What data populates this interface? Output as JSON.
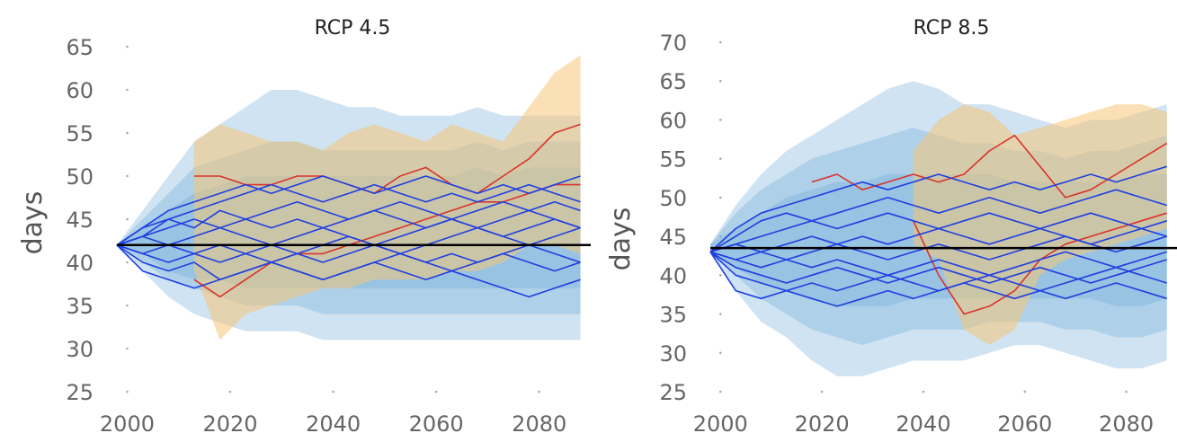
{
  "chart_data": [
    {
      "type": "line",
      "title": "RCP 4.5",
      "xlabel": "",
      "ylabel": "days",
      "xlim": [
        1998,
        2090
      ],
      "ylim": [
        25,
        65
      ],
      "x_ticks": [
        2000,
        2020,
        2040,
        2060,
        2080
      ],
      "x_tick_labels": [
        "2000",
        "2020",
        "2040",
        "2060",
        "2080"
      ],
      "y_ticks": [
        25,
        30,
        35,
        40,
        45,
        50,
        55,
        60,
        65
      ],
      "y_tick_labels": [
        "25",
        "30",
        "35",
        "40",
        "45",
        "50",
        "55",
        "60",
        "65"
      ],
      "grid": "dotted-ticks",
      "colors": {
        "band_blue": "#6aa7d6",
        "band_orange": "#f5c777",
        "line_blue": "#1f3fe0",
        "line_red": "#d9342b",
        "baseline": "#000000"
      },
      "x": [
        1998,
        2003,
        2008,
        2013,
        2018,
        2023,
        2028,
        2033,
        2038,
        2043,
        2048,
        2053,
        2058,
        2063,
        2068,
        2073,
        2078,
        2083,
        2088
      ],
      "baseline": 42,
      "bands": [
        {
          "color": "blue",
          "lower": [
            42,
            39,
            36,
            34,
            33,
            32,
            32,
            32,
            31,
            31,
            31,
            31,
            31,
            31,
            31,
            31,
            31,
            31,
            31
          ],
          "upper": [
            42,
            46,
            50,
            54,
            56,
            58,
            60,
            60,
            59,
            58,
            58,
            57,
            57,
            57,
            58,
            57,
            57,
            57,
            57
          ]
        },
        {
          "color": "blue",
          "lower": [
            42,
            40,
            38,
            37,
            36,
            35,
            35,
            35,
            34,
            34,
            34,
            34,
            34,
            34,
            34,
            34,
            34,
            34,
            34
          ],
          "upper": [
            42,
            45,
            48,
            51,
            52,
            53,
            54,
            54,
            53,
            53,
            53,
            53,
            53,
            53,
            54,
            53,
            54,
            54,
            54
          ]
        },
        {
          "color": "blue",
          "lower": [
            42,
            41,
            39,
            38,
            38,
            37,
            37,
            37,
            37,
            37,
            37,
            37,
            37,
            37,
            37,
            37,
            37,
            37,
            37
          ],
          "upper": [
            42,
            44,
            46,
            48,
            49,
            50,
            50,
            50,
            50,
            50,
            50,
            50,
            50,
            50,
            51,
            50,
            51,
            51,
            51
          ]
        },
        {
          "color": "orange",
          "lower": [
            null,
            null,
            null,
            39,
            31,
            34,
            35,
            36,
            37,
            37,
            38,
            38,
            38,
            39,
            39,
            40,
            42,
            42,
            41
          ],
          "upper": [
            null,
            null,
            null,
            54,
            56,
            55,
            54,
            54,
            53,
            55,
            56,
            55,
            54,
            56,
            55,
            54,
            58,
            62,
            64
          ]
        }
      ],
      "series": [
        {
          "color": "red",
          "values": [
            null,
            null,
            null,
            50,
            50,
            49,
            49,
            50,
            50,
            49,
            48,
            50,
            51,
            49,
            48,
            50,
            52,
            55,
            56
          ]
        },
        {
          "color": "red",
          "values": [
            null,
            null,
            null,
            38,
            36,
            38,
            40,
            41,
            41,
            42,
            43,
            44,
            45,
            46,
            47,
            47,
            48,
            49,
            49
          ]
        },
        {
          "color": "blue",
          "values": [
            42,
            44,
            46,
            47,
            48,
            49,
            48,
            49,
            50,
            49,
            48,
            49,
            50,
            49,
            48,
            49,
            48,
            49,
            50
          ]
        },
        {
          "color": "blue",
          "values": [
            42,
            43,
            45,
            46,
            47,
            48,
            49,
            48,
            47,
            48,
            49,
            48,
            47,
            48,
            47,
            48,
            49,
            48,
            47
          ]
        },
        {
          "color": "blue",
          "values": [
            42,
            44,
            45,
            44,
            46,
            45,
            46,
            47,
            46,
            45,
            46,
            47,
            46,
            45,
            46,
            47,
            46,
            47,
            46
          ]
        },
        {
          "color": "blue",
          "values": [
            42,
            43,
            44,
            45,
            44,
            45,
            44,
            45,
            44,
            45,
            46,
            45,
            44,
            45,
            44,
            45,
            46,
            45,
            44
          ]
        },
        {
          "color": "blue",
          "values": [
            42,
            43,
            42,
            43,
            44,
            43,
            42,
            43,
            44,
            43,
            42,
            43,
            44,
            45,
            44,
            43,
            44,
            45,
            44
          ]
        },
        {
          "color": "blue",
          "values": [
            42,
            41,
            42,
            41,
            40,
            41,
            42,
            41,
            42,
            43,
            42,
            41,
            42,
            43,
            44,
            43,
            42,
            43,
            44
          ]
        },
        {
          "color": "blue",
          "values": [
            42,
            41,
            40,
            41,
            42,
            41,
            40,
            41,
            40,
            41,
            42,
            41,
            40,
            41,
            40,
            41,
            42,
            41,
            40
          ]
        },
        {
          "color": "blue",
          "values": [
            42,
            40,
            39,
            40,
            38,
            39,
            40,
            39,
            38,
            39,
            40,
            41,
            40,
            39,
            40,
            41,
            40,
            39,
            40
          ]
        },
        {
          "color": "blue",
          "values": [
            42,
            39,
            38,
            37,
            38,
            39,
            40,
            39,
            38,
            39,
            40,
            39,
            38,
            39,
            38,
            37,
            36,
            37,
            38
          ]
        }
      ]
    },
    {
      "type": "line",
      "title": "RCP 8.5",
      "xlabel": "",
      "ylabel": "days",
      "xlim": [
        1998,
        2090
      ],
      "ylim": [
        25,
        70
      ],
      "x_ticks": [
        2000,
        2020,
        2040,
        2060,
        2080
      ],
      "x_tick_labels": [
        "2000",
        "2020",
        "2040",
        "2060",
        "2080"
      ],
      "y_ticks": [
        25,
        30,
        35,
        40,
        45,
        50,
        55,
        60,
        65,
        70
      ],
      "y_tick_labels": [
        "25",
        "30",
        "35",
        "40",
        "45",
        "50",
        "55",
        "60",
        "65",
        "70"
      ],
      "grid": "dotted-ticks",
      "colors": {
        "band_blue": "#6aa7d6",
        "band_orange": "#f5c777",
        "line_blue": "#1f3fe0",
        "line_red": "#d9342b",
        "baseline": "#000000"
      },
      "x": [
        1998,
        2003,
        2008,
        2013,
        2018,
        2023,
        2028,
        2033,
        2038,
        2043,
        2048,
        2053,
        2058,
        2063,
        2068,
        2073,
        2078,
        2083,
        2088
      ],
      "baseline": 43.5,
      "bands": [
        {
          "color": "blue",
          "lower": [
            43,
            38,
            34,
            32,
            29,
            27,
            27,
            28,
            29,
            29,
            29,
            30,
            31,
            31,
            30,
            29,
            28,
            28,
            29
          ],
          "upper": [
            44,
            49,
            53,
            56,
            58,
            60,
            62,
            64,
            65,
            64,
            62,
            62,
            61,
            60,
            59,
            60,
            60,
            61,
            62
          ]
        },
        {
          "color": "blue",
          "lower": [
            43,
            40,
            37,
            35,
            33,
            32,
            31,
            32,
            33,
            33,
            33,
            34,
            34,
            34,
            33,
            33,
            32,
            32,
            33
          ],
          "upper": [
            44,
            48,
            51,
            53,
            55,
            56,
            57,
            58,
            59,
            58,
            57,
            57,
            56,
            56,
            55,
            56,
            56,
            57,
            58
          ]
        },
        {
          "color": "blue",
          "lower": [
            43,
            41,
            39,
            38,
            37,
            36,
            36,
            36,
            37,
            37,
            37,
            37,
            37,
            37,
            37,
            37,
            36,
            36,
            37
          ],
          "upper": [
            44,
            46,
            48,
            50,
            51,
            52,
            52,
            53,
            53,
            53,
            53,
            53,
            52,
            52,
            52,
            52,
            52,
            53,
            53
          ]
        },
        {
          "color": "orange",
          "lower": [
            null,
            null,
            null,
            null,
            null,
            null,
            null,
            null,
            44,
            42,
            33,
            31,
            33,
            40,
            42,
            43,
            44,
            45,
            46
          ],
          "upper": [
            null,
            null,
            null,
            null,
            null,
            null,
            null,
            null,
            56,
            60,
            62,
            61,
            58,
            59,
            60,
            61,
            62,
            62,
            61
          ]
        }
      ],
      "series": [
        {
          "color": "red",
          "values": [
            null,
            null,
            null,
            null,
            52,
            53,
            51,
            52,
            53,
            52,
            53,
            56,
            58,
            54,
            50,
            51,
            53,
            55,
            57
          ]
        },
        {
          "color": "red",
          "values": [
            null,
            null,
            null,
            null,
            null,
            null,
            null,
            null,
            47,
            40,
            35,
            36,
            38,
            42,
            44,
            45,
            46,
            47,
            48
          ]
        },
        {
          "color": "blue",
          "values": [
            43,
            46,
            48,
            49,
            50,
            51,
            52,
            51,
            52,
            53,
            52,
            51,
            52,
            51,
            52,
            53,
            52,
            53,
            54
          ]
        },
        {
          "color": "blue",
          "values": [
            43,
            45,
            47,
            48,
            47,
            48,
            49,
            50,
            49,
            48,
            49,
            50,
            49,
            48,
            49,
            50,
            51,
            50,
            49
          ]
        },
        {
          "color": "blue",
          "values": [
            43,
            44,
            45,
            46,
            47,
            46,
            47,
            48,
            47,
            46,
            47,
            48,
            47,
            46,
            47,
            48,
            47,
            46,
            47
          ]
        },
        {
          "color": "blue",
          "values": [
            43,
            44,
            43,
            44,
            45,
            44,
            45,
            44,
            45,
            46,
            45,
            44,
            45,
            46,
            45,
            44,
            45,
            46,
            45
          ]
        },
        {
          "color": "blue",
          "values": [
            43,
            42,
            43,
            42,
            43,
            44,
            43,
            42,
            43,
            44,
            43,
            42,
            43,
            44,
            45,
            44,
            43,
            44,
            45
          ]
        },
        {
          "color": "blue",
          "values": [
            43,
            42,
            41,
            42,
            41,
            42,
            41,
            40,
            41,
            42,
            41,
            40,
            41,
            42,
            43,
            42,
            41,
            42,
            43
          ]
        },
        {
          "color": "blue",
          "values": [
            43,
            41,
            40,
            39,
            40,
            41,
            40,
            39,
            40,
            41,
            40,
            39,
            40,
            41,
            40,
            39,
            40,
            41,
            42
          ]
        },
        {
          "color": "blue",
          "values": [
            43,
            40,
            39,
            38,
            39,
            38,
            39,
            40,
            39,
            38,
            39,
            40,
            39,
            38,
            39,
            40,
            41,
            40,
            39
          ]
        },
        {
          "color": "blue",
          "values": [
            43,
            38,
            37,
            38,
            37,
            36,
            37,
            38,
            37,
            38,
            39,
            38,
            37,
            38,
            37,
            38,
            39,
            38,
            37
          ]
        }
      ]
    }
  ]
}
